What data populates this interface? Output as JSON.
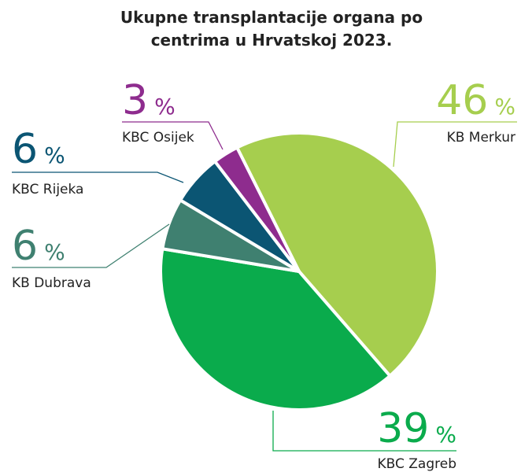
{
  "chart_data": {
    "type": "pie",
    "title": "Ukupne transplantacije organa po centrima u Hrvatskoj 2023.",
    "categories": [
      "KB Merkur",
      "KBC Zagreb",
      "KB Dubrava",
      "KBC Rijeka",
      "KBC Osijek"
    ],
    "values": [
      46,
      39,
      6,
      6,
      3
    ],
    "unit": "%",
    "colors": [
      "#a6ce4e",
      "#0aab4c",
      "#3f8070",
      "#0b5573",
      "#8e2c8e"
    ]
  }
}
